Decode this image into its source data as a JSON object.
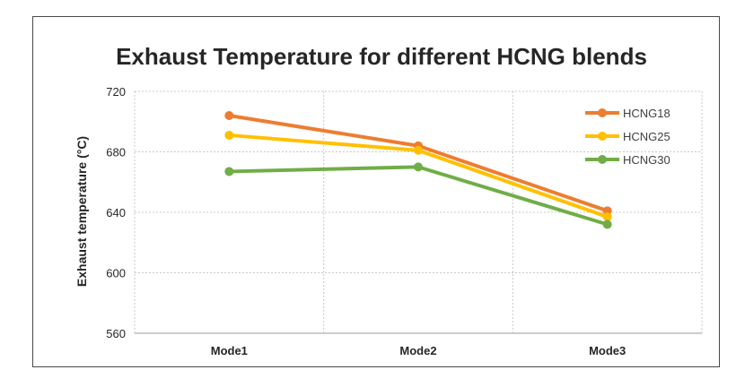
{
  "chart_data": {
    "type": "line",
    "title": "Exhaust Temperature for different HCNG blends",
    "xlabel": "",
    "ylabel": "Exhaust temperature (°C)",
    "categories": [
      "Mode1",
      "Mode2",
      "Mode3"
    ],
    "ylim": [
      560,
      720
    ],
    "yticks": [
      "560",
      "600",
      "640",
      "680",
      "720"
    ],
    "grid": true,
    "legend_position": "top-right",
    "series": [
      {
        "name": "HCNG18",
        "color": "#ed7d31",
        "values": [
          704,
          684,
          641
        ]
      },
      {
        "name": "HCNG25",
        "color": "#ffc000",
        "values": [
          691,
          681,
          637
        ]
      },
      {
        "name": "HCNG30",
        "color": "#70ad47",
        "values": [
          667,
          670,
          632
        ]
      }
    ]
  }
}
